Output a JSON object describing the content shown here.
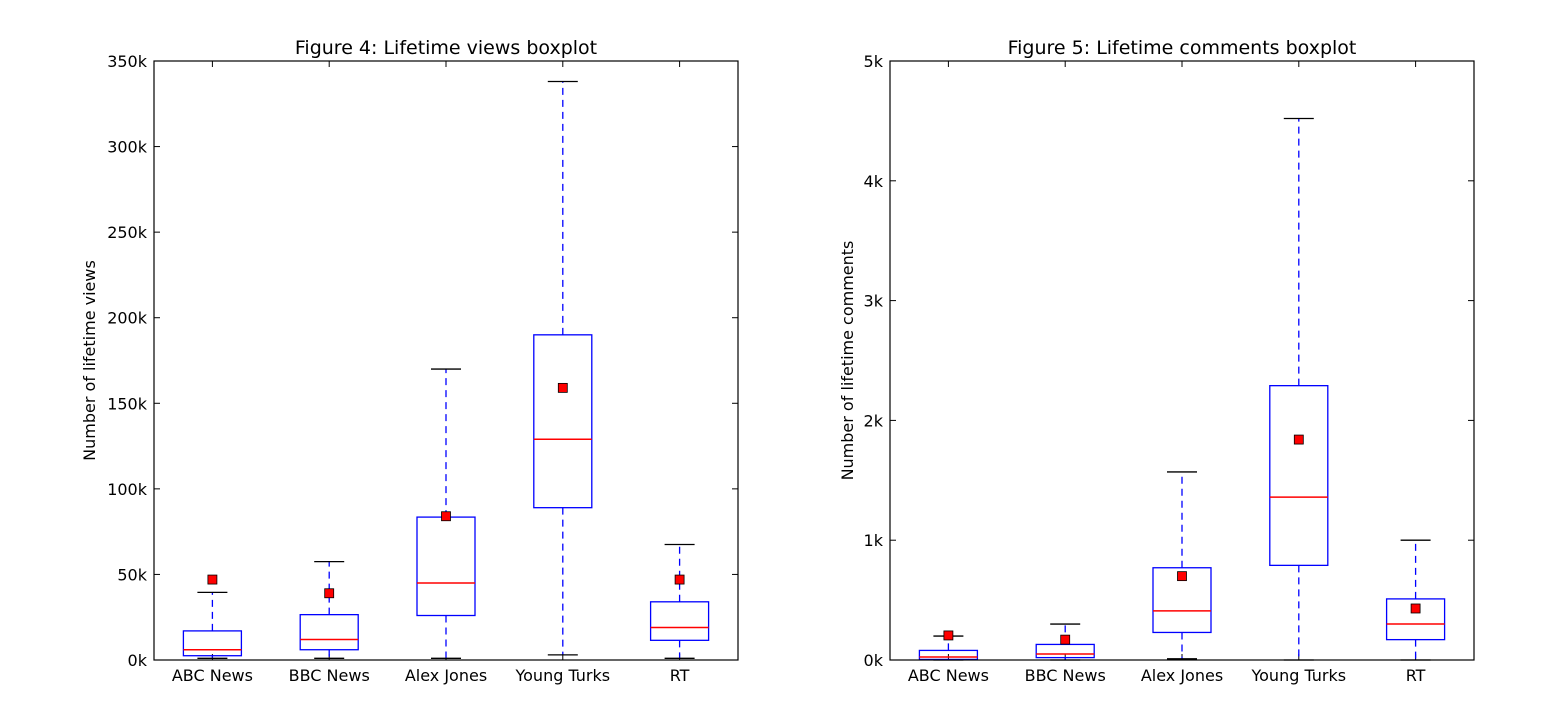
{
  "chart_data": [
    {
      "type": "boxplot",
      "title": "Figure 4: Lifetime views boxplot",
      "xlabel": "",
      "ylabel": "Number of lifetime views",
      "ylim": [
        0,
        350000
      ],
      "yticks": [
        0,
        50000,
        100000,
        150000,
        200000,
        250000,
        300000,
        350000
      ],
      "ytick_labels": [
        "0k",
        "50k",
        "100k",
        "150k",
        "200k",
        "250k",
        "300k",
        "350k"
      ],
      "categories": [
        "ABC News",
        "BBC News",
        "Alex Jones",
        "Young Turks",
        "RT"
      ],
      "boxes": [
        {
          "whisker_low": 1000,
          "q1": 2500,
          "median": 6000,
          "q3": 17000,
          "whisker_high": 39500,
          "mean": 47000
        },
        {
          "whisker_low": 1000,
          "q1": 6000,
          "median": 12000,
          "q3": 26500,
          "whisker_high": 57500,
          "mean": 39000
        },
        {
          "whisker_low": 1000,
          "q1": 26000,
          "median": 45000,
          "q3": 83500,
          "whisker_high": 170000,
          "mean": 84000
        },
        {
          "whisker_low": 3000,
          "q1": 89000,
          "median": 129000,
          "q3": 190000,
          "whisker_high": 338000,
          "mean": 159000
        },
        {
          "whisker_low": 1000,
          "q1": 11500,
          "median": 19000,
          "q3": 34000,
          "whisker_high": 67500,
          "mean": 47000
        }
      ],
      "grid": false,
      "colors": {
        "box": "#0000ff",
        "median": "#ff0000",
        "mean": "#ff0000",
        "cap": "#000000"
      }
    },
    {
      "type": "boxplot",
      "title": "Figure 5: Lifetime comments boxplot",
      "xlabel": "",
      "ylabel": "Number of lifetime comments",
      "ylim": [
        0,
        5000
      ],
      "yticks": [
        0,
        1000,
        2000,
        3000,
        4000,
        5000
      ],
      "ytick_labels": [
        "0k",
        "1k",
        "2k",
        "3k",
        "4k",
        "5k"
      ],
      "categories": [
        "ABC News",
        "BBC News",
        "Alex Jones",
        "Young Turks",
        "RT"
      ],
      "boxes": [
        {
          "whisker_low": 0,
          "q1": 5,
          "median": 25,
          "q3": 80,
          "whisker_high": 200,
          "mean": 205
        },
        {
          "whisker_low": 0,
          "q1": 20,
          "median": 50,
          "q3": 130,
          "whisker_high": 300,
          "mean": 170
        },
        {
          "whisker_low": 10,
          "q1": 230,
          "median": 410,
          "q3": 770,
          "whisker_high": 1570,
          "mean": 700
        },
        {
          "whisker_low": 0,
          "q1": 790,
          "median": 1360,
          "q3": 2290,
          "whisker_high": 4520,
          "mean": 1840
        },
        {
          "whisker_low": 0,
          "q1": 170,
          "median": 300,
          "q3": 510,
          "whisker_high": 1000,
          "mean": 430
        }
      ],
      "grid": false,
      "colors": {
        "box": "#0000ff",
        "median": "#ff0000",
        "mean": "#ff0000",
        "cap": "#000000"
      }
    }
  ]
}
